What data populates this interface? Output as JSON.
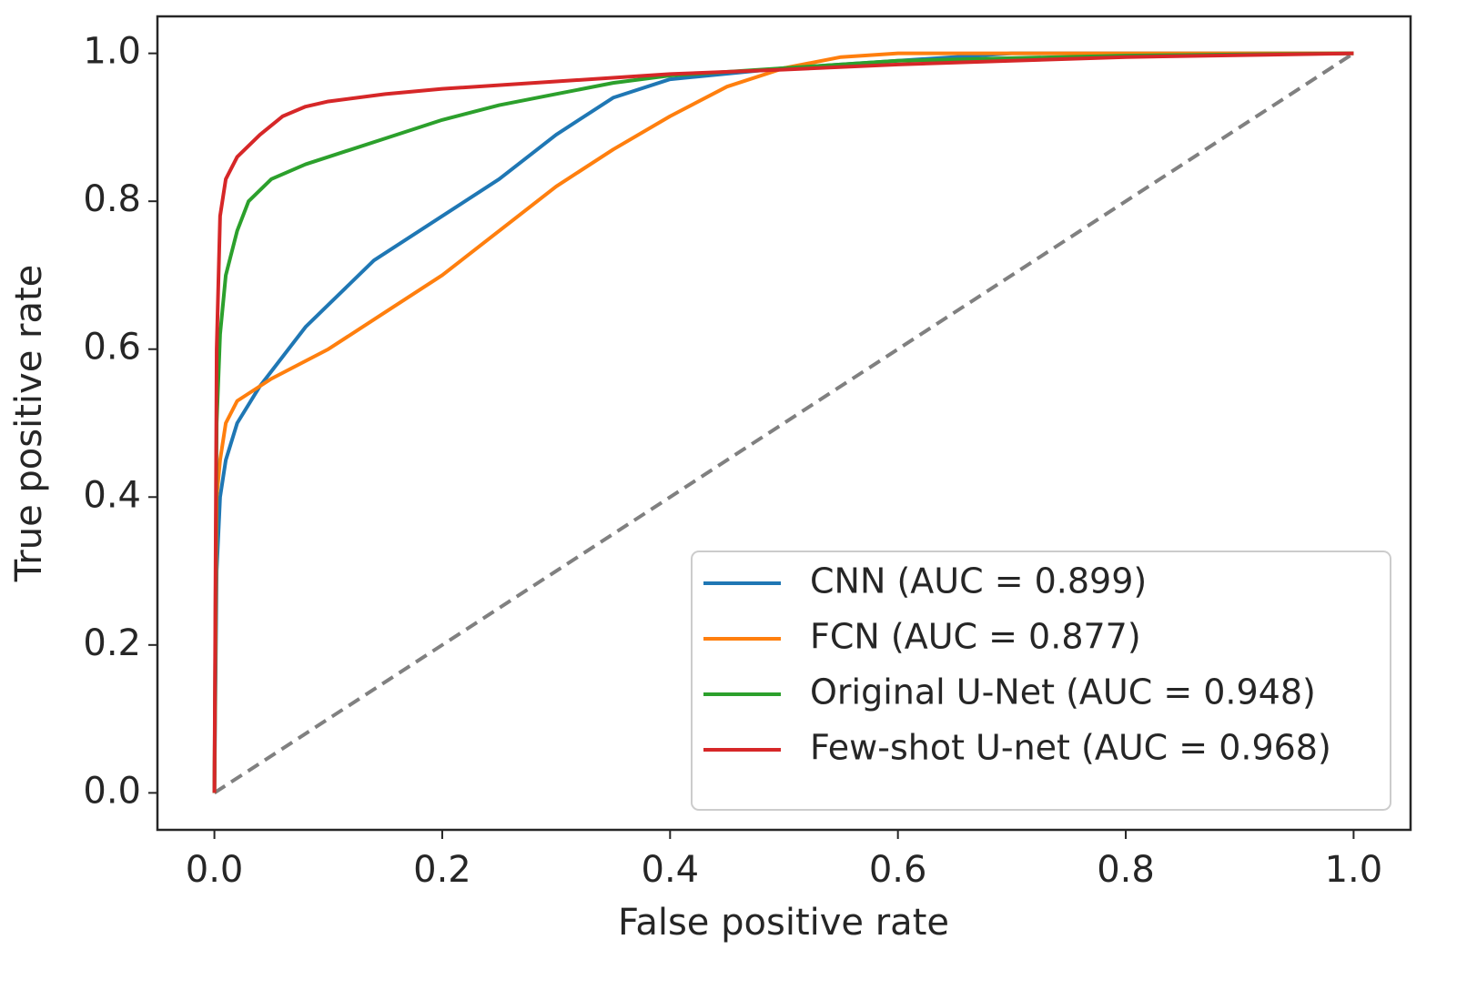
{
  "chart_data": {
    "type": "line",
    "xlabel": "False positive rate",
    "ylabel": "True positive rate",
    "xlim": [
      -0.05,
      1.05
    ],
    "ylim": [
      -0.05,
      1.05
    ],
    "xticks": [
      {
        "value": 0,
        "label": "0.0"
      },
      0.2,
      0.4,
      0.6,
      0.8,
      {
        "value": 1,
        "label": "1.0"
      }
    ],
    "yticks": [
      {
        "value": 0,
        "label": "0.0"
      },
      0.2,
      0.4,
      0.6,
      0.8,
      {
        "value": 1,
        "label": "1.0"
      }
    ],
    "grid": false,
    "legend": "lower right",
    "series": [
      {
        "name": "CNN (AUC = 0.899)",
        "color": "#1f77b4",
        "x": [
          0,
          0.002,
          0.005,
          0.01,
          0.02,
          0.04,
          0.06,
          0.08,
          0.1,
          0.14,
          0.2,
          0.25,
          0.3,
          0.35,
          0.4,
          0.5,
          0.6,
          0.7,
          1
        ],
        "values": [
          0,
          0.3,
          0.4,
          0.45,
          0.5,
          0.55,
          0.59,
          0.63,
          0.66,
          0.72,
          0.78,
          0.83,
          0.89,
          0.94,
          0.965,
          0.98,
          0.99,
          1.0,
          1.0
        ]
      },
      {
        "name": "FCN (AUC = 0.877)",
        "color": "#ff7f0e",
        "x": [
          0,
          0.002,
          0.005,
          0.01,
          0.02,
          0.05,
          0.1,
          0.15,
          0.2,
          0.25,
          0.3,
          0.35,
          0.4,
          0.45,
          0.5,
          0.55,
          0.6,
          1
        ],
        "values": [
          0,
          0.4,
          0.45,
          0.5,
          0.53,
          0.56,
          0.6,
          0.65,
          0.7,
          0.76,
          0.82,
          0.87,
          0.915,
          0.955,
          0.98,
          0.995,
          1.0,
          1.0
        ]
      },
      {
        "name": "Original U-Net (AUC = 0.948)",
        "color": "#2ca02c",
        "x": [
          0,
          0.002,
          0.005,
          0.01,
          0.02,
          0.03,
          0.05,
          0.08,
          0.1,
          0.15,
          0.2,
          0.25,
          0.3,
          0.35,
          0.4,
          0.5,
          0.6,
          0.8,
          1
        ],
        "values": [
          0,
          0.5,
          0.62,
          0.7,
          0.76,
          0.8,
          0.83,
          0.85,
          0.86,
          0.885,
          0.91,
          0.93,
          0.945,
          0.96,
          0.97,
          0.98,
          0.99,
          0.997,
          1.0
        ]
      },
      {
        "name": "Few-shot U-net (AUC = 0.968)",
        "color": "#d62728",
        "x": [
          0,
          0.002,
          0.005,
          0.01,
          0.02,
          0.04,
          0.06,
          0.08,
          0.1,
          0.15,
          0.2,
          0.3,
          0.4,
          0.5,
          0.6,
          0.7,
          0.8,
          1
        ],
        "values": [
          0,
          0.6,
          0.78,
          0.83,
          0.86,
          0.89,
          0.915,
          0.928,
          0.935,
          0.945,
          0.952,
          0.962,
          0.972,
          0.978,
          0.985,
          0.99,
          0.995,
          1.0
        ]
      }
    ],
    "diagonal": {
      "color": "#808080",
      "x": [
        0,
        1
      ],
      "values": [
        0,
        1
      ]
    }
  }
}
